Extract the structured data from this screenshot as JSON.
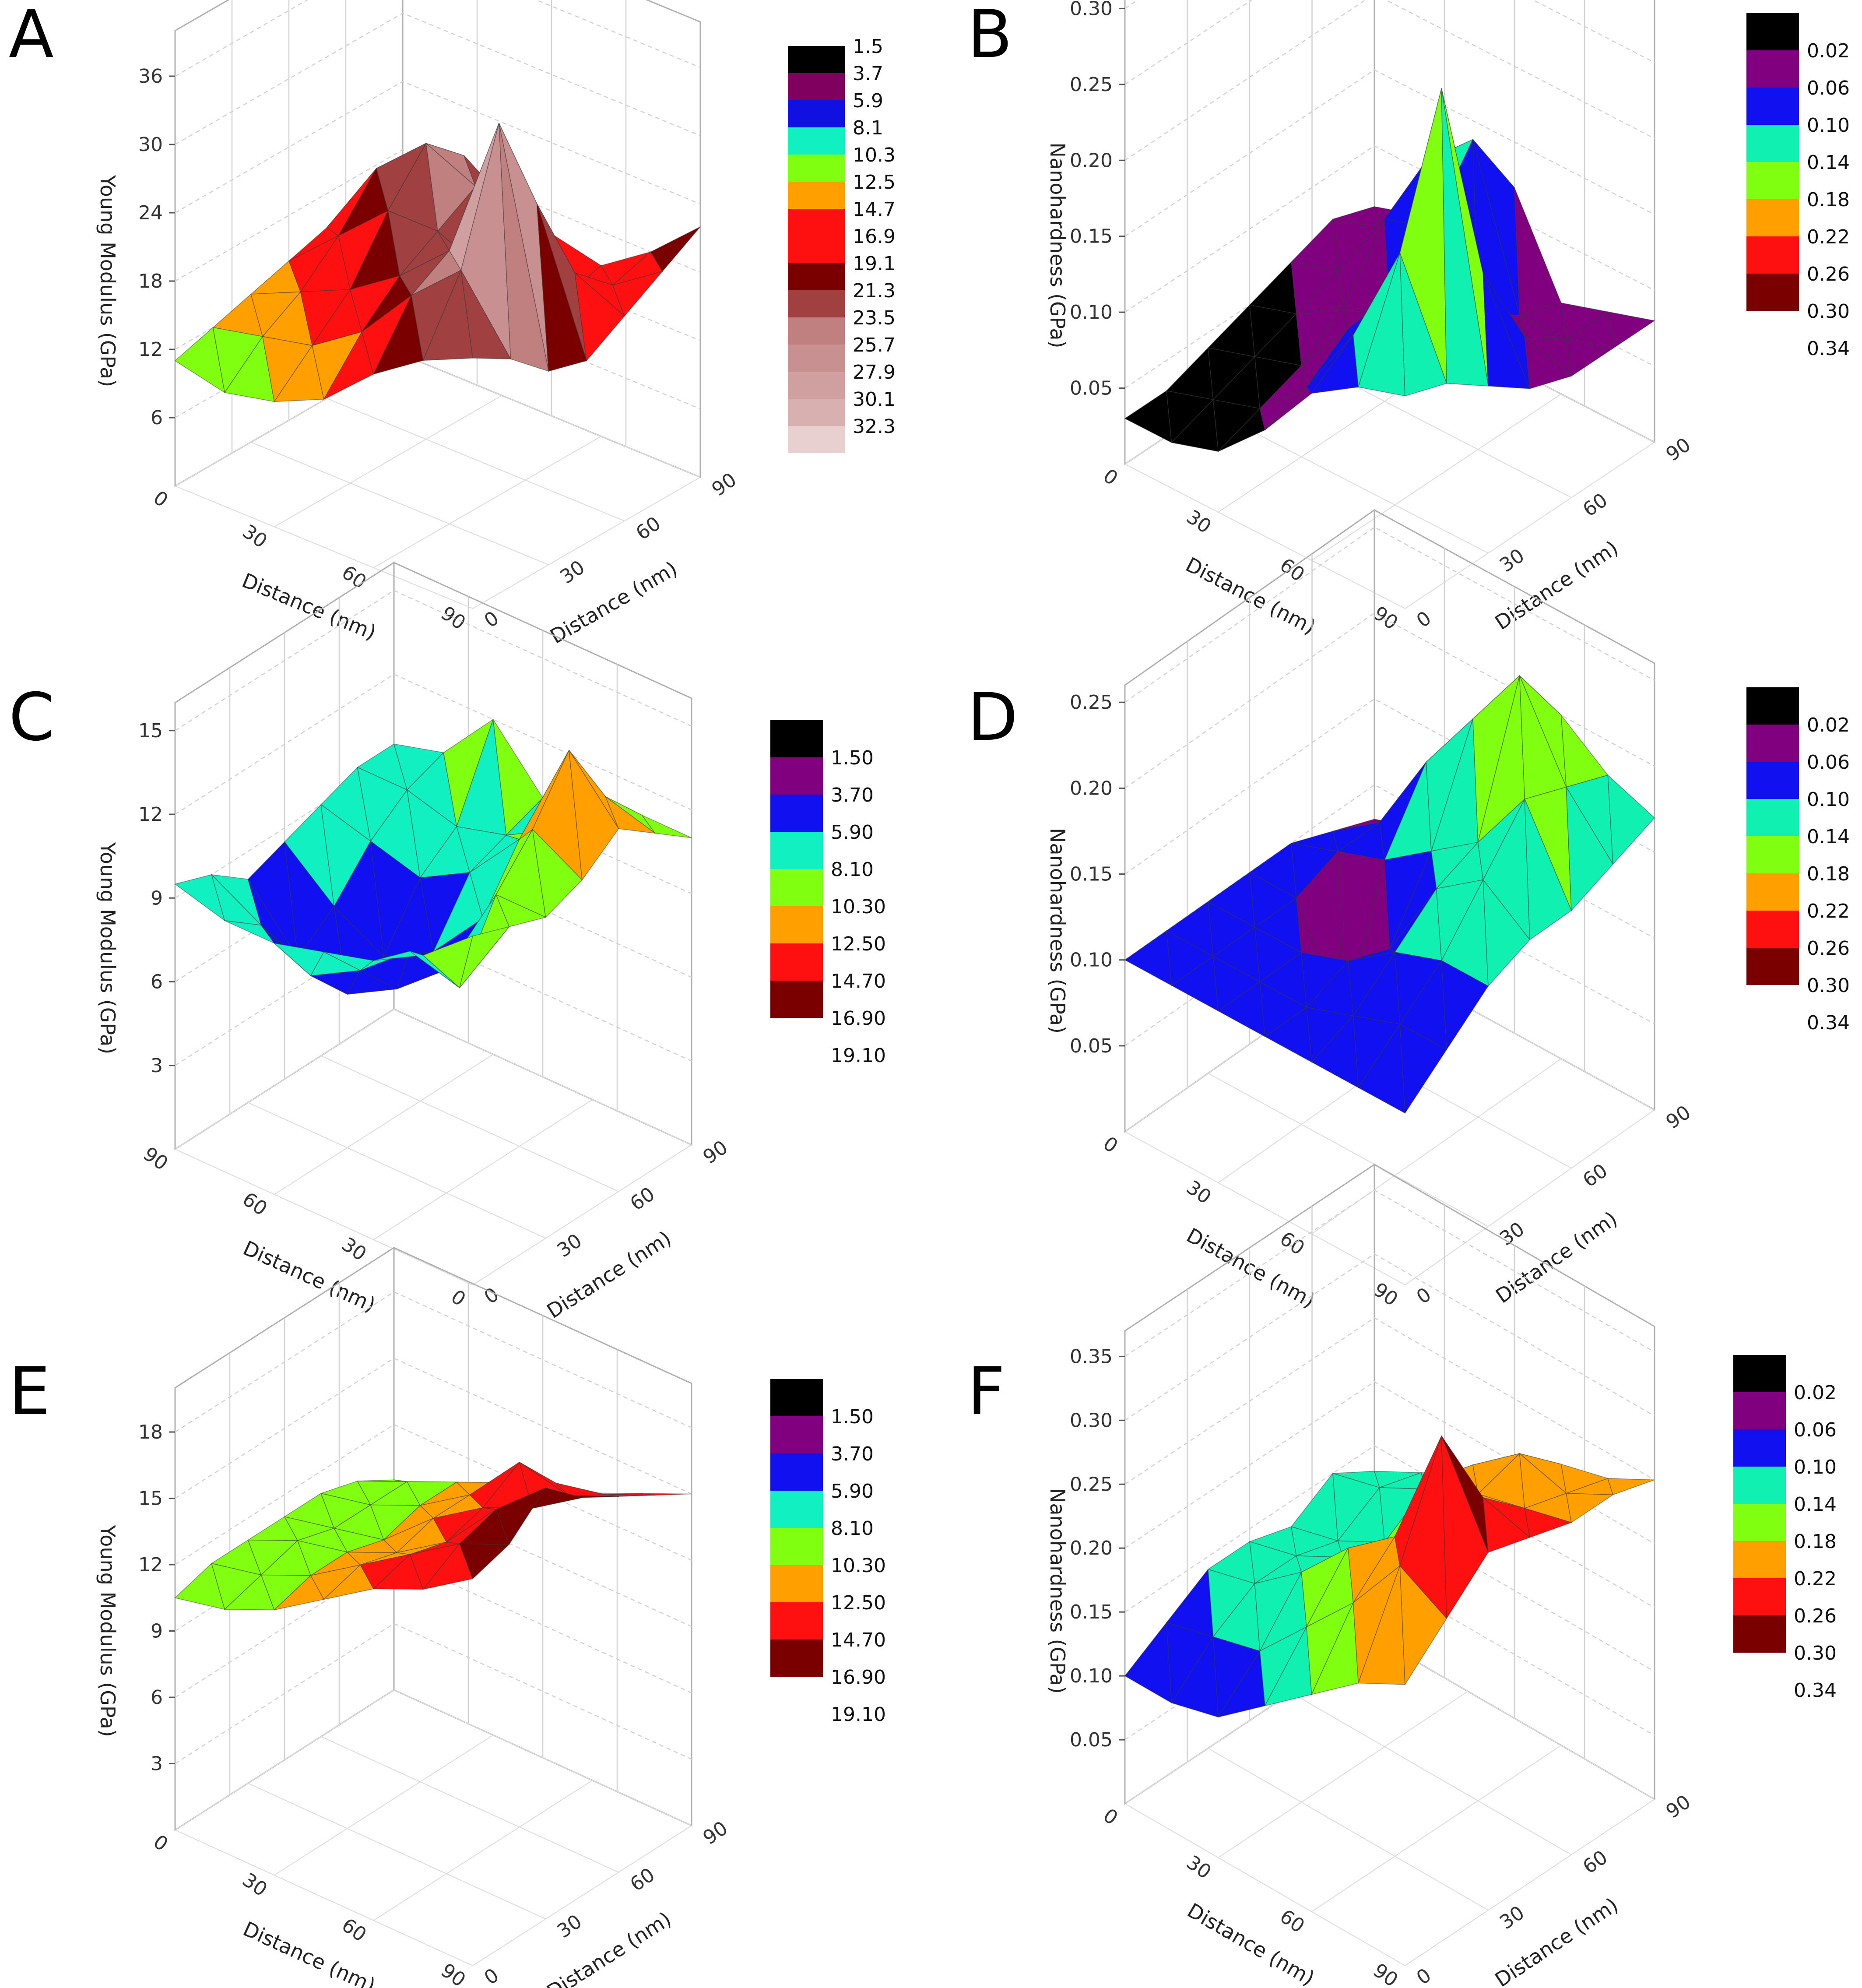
{
  "panels": [
    {
      "label": "A",
      "chart_data": {
        "type": "surface3d",
        "zlabel": "Young Modulus (GPa)",
        "xlabel": "Distance (nm)",
        "ylabel": "Distance (nm)",
        "x_ticks": [
          "0",
          "30",
          "60",
          "90"
        ],
        "y_ticks": [
          "0",
          "30",
          "60",
          "90"
        ],
        "z_ticks": [
          "6",
          "12",
          "18",
          "24",
          "30",
          "36"
        ],
        "zlim": [
          0,
          40
        ],
        "legend_labels": [
          "1.5",
          "3.7",
          "5.9",
          "8.1",
          "10.3",
          "12.5",
          "14.7",
          "16.9",
          "19.1",
          "21.3",
          "23.5",
          "25.7",
          "27.9",
          "30.1",
          "32.3"
        ],
        "legend_colors": [
          "#000000",
          "#800060",
          "#1010e0",
          "#10f0c0",
          "#80ff10",
          "#ffa000",
          "#ff1010",
          "#ff1010",
          "#7a0000",
          "#a04040",
          "#c08080",
          "#c89090",
          "#d0a0a0",
          "#d8b0b0",
          "#e8d0d0"
        ],
        "x": [
          0,
          15,
          30,
          45,
          60,
          75,
          90
        ],
        "y": [
          0,
          15,
          30,
          45,
          60,
          75,
          90
        ],
        "z": [
          [
            22,
            20,
            17,
            16,
            18,
            20,
            22
          ],
          [
            20,
            26,
            37,
            28,
            20,
            17,
            18
          ],
          [
            17,
            22,
            24,
            20,
            17,
            14,
            15
          ],
          [
            13,
            17,
            20,
            22,
            24,
            20,
            16
          ],
          [
            11,
            14,
            17,
            22,
            26,
            23,
            17
          ],
          [
            10,
            13,
            15,
            18,
            22,
            21,
            15
          ],
          [
            11,
            12,
            13,
            14,
            15,
            14,
            13
          ]
        ]
      }
    },
    {
      "label": "B",
      "chart_data": {
        "type": "surface3d",
        "zlabel": "Nanohardness (GPa)",
        "xlabel": "Distance (nm)",
        "ylabel": "Distance (nm)",
        "x_ticks": [
          "0",
          "30",
          "60",
          "90"
        ],
        "y_ticks": [
          "0",
          "30",
          "60",
          "90"
        ],
        "z_ticks": [
          "0.05",
          "0.10",
          "0.15",
          "0.20",
          "0.25",
          "0.30"
        ],
        "zlim": [
          0,
          0.32
        ],
        "legend_labels": [
          "0.02",
          "0.06",
          "0.10",
          "0.14",
          "0.18",
          "0.22",
          "0.26",
          "0.30",
          "0.34"
        ],
        "legend_colors": [
          "#000000",
          "#800080",
          "#1010f0",
          "#10f0b0",
          "#80ff10",
          "#ffa000",
          "#ff1010",
          "#7a0000"
        ],
        "x": [
          0,
          15,
          30,
          45,
          60,
          75,
          90
        ],
        "y": [
          0,
          15,
          30,
          45,
          60,
          75,
          90
        ],
        "z": [
          [
            0.14,
            0.13,
            0.11,
            0.09,
            0.08,
            0.08,
            0.08
          ],
          [
            0.13,
            0.2,
            0.29,
            0.15,
            0.09,
            0.07,
            0.07
          ],
          [
            0.11,
            0.13,
            0.14,
            0.1,
            0.09,
            0.07,
            0.06
          ],
          [
            0.07,
            0.08,
            0.1,
            0.09,
            0.13,
            0.17,
            0.12
          ],
          [
            0.04,
            0.05,
            0.06,
            0.08,
            0.12,
            0.14,
            0.1
          ],
          [
            0.03,
            0.04,
            0.05,
            0.06,
            0.07,
            0.08,
            0.07
          ],
          [
            0.03,
            0.03,
            0.04,
            0.05,
            0.06,
            0.07,
            0.06
          ]
        ]
      }
    },
    {
      "label": "C",
      "chart_data": {
        "type": "surface3d",
        "zlabel": "Young Modulus (GPa)",
        "xlabel": "Distance (nm)",
        "ylabel": "Distance (nm)",
        "x_ticks": [
          "90",
          "60",
          "30",
          "0"
        ],
        "y_ticks": [
          "0",
          "30",
          "60",
          "90"
        ],
        "z_ticks": [
          "3",
          "6",
          "9",
          "12",
          "15"
        ],
        "zlim": [
          0,
          16
        ],
        "legend_labels": [
          "1.50",
          "3.70",
          "5.90",
          "8.10",
          "10.30",
          "12.50",
          "14.70",
          "16.90",
          "19.10"
        ],
        "legend_colors": [
          "#000000",
          "#800080",
          "#1010f0",
          "#10f0c0",
          "#80ff10",
          "#ffa000",
          "#ff1010",
          "#7a0000"
        ],
        "x": [
          90,
          75,
          60,
          45,
          30,
          15,
          0
        ],
        "y": [
          0,
          15,
          30,
          45,
          60,
          75,
          90
        ],
        "z": [
          [
            12.5,
            12.0,
            11.5,
            12.0,
            13.0,
            12.0,
            11.0
          ],
          [
            11.0,
            9.0,
            11.5,
            13.0,
            15.0,
            12.5,
            11.0
          ],
          [
            10.0,
            9.5,
            8.0,
            9.0,
            11.0,
            10.5,
            11.0
          ],
          [
            9.5,
            8.0,
            6.5,
            7.0,
            9.0,
            9.5,
            10.0
          ],
          [
            9.0,
            7.0,
            5.5,
            6.0,
            8.0,
            9.0,
            12.0
          ],
          [
            9.0,
            8.0,
            6.0,
            7.0,
            8.5,
            9.5,
            10.0
          ],
          [
            9.5,
            9.0,
            8.0,
            8.5,
            9.0,
            9.5,
            9.5
          ]
        ]
      }
    },
    {
      "label": "D",
      "chart_data": {
        "type": "surface3d",
        "zlabel": "Nanohardness (GPa)",
        "xlabel": "Distance (nm)",
        "ylabel": "Distance (nm)",
        "x_ticks": [
          "0",
          "30",
          "60",
          "90"
        ],
        "y_ticks": [
          "0",
          "30",
          "60",
          "90"
        ],
        "z_ticks": [
          "0.05",
          "0.10",
          "0.15",
          "0.20",
          "0.25"
        ],
        "zlim": [
          0,
          0.26
        ],
        "legend_labels": [
          "0.02",
          "0.06",
          "0.10",
          "0.14",
          "0.18",
          "0.22",
          "0.26",
          "0.30",
          "0.34"
        ],
        "legend_colors": [
          "#000000",
          "#800080",
          "#1010f0",
          "#10f0b0",
          "#80ff10",
          "#ffa000",
          "#ff1010",
          "#7a0000"
        ],
        "x": [
          0,
          15,
          30,
          45,
          60,
          75,
          90
        ],
        "y": [
          0,
          15,
          30,
          45,
          60,
          75,
          90
        ],
        "z": [
          [
            0.1,
            0.12,
            0.14,
            0.15,
            0.15,
            0.16,
            0.17
          ],
          [
            0.1,
            0.12,
            0.14,
            0.17,
            0.2,
            0.19,
            0.18
          ],
          [
            0.1,
            0.11,
            0.13,
            0.15,
            0.16,
            0.24,
            0.2
          ],
          [
            0.1,
            0.1,
            0.11,
            0.1,
            0.14,
            0.2,
            0.18
          ],
          [
            0.1,
            0.1,
            0.1,
            0.04,
            0.12,
            0.16,
            0.14
          ],
          [
            0.1,
            0.1,
            0.1,
            0.1,
            0.11,
            0.11,
            0.09
          ],
          [
            0.1,
            0.1,
            0.1,
            0.1,
            0.1,
            0.09,
            0.08
          ]
        ]
      }
    },
    {
      "label": "E",
      "chart_data": {
        "type": "surface3d",
        "zlabel": "Young Modulus (GPa)",
        "xlabel": "Distance (nm)",
        "ylabel": "Distance (nm)",
        "x_ticks": [
          "0",
          "30",
          "60",
          "90"
        ],
        "y_ticks": [
          "0",
          "30",
          "60",
          "90"
        ],
        "z_ticks": [
          "3",
          "6",
          "9",
          "12",
          "15",
          "18"
        ],
        "zlim": [
          0,
          20
        ],
        "legend_labels": [
          "1.50",
          "3.70",
          "5.90",
          "8.10",
          "10.30",
          "12.50",
          "14.70",
          "16.90",
          "19.10"
        ],
        "legend_colors": [
          "#000000",
          "#800080",
          "#1010f0",
          "#10f0c0",
          "#80ff10",
          "#ffa000",
          "#ff1010",
          "#7a0000"
        ],
        "x": [
          0,
          15,
          30,
          45,
          60,
          75,
          90
        ],
        "y": [
          0,
          15,
          30,
          45,
          60,
          75,
          90
        ],
        "z": [
          [
            17.5,
            18.0,
            19.5,
            18.0,
            17.0,
            16.0,
            15.0
          ],
          [
            16.0,
            17.0,
            17.5,
            16.5,
            16.0,
            15.0,
            14.0
          ],
          [
            15.0,
            15.5,
            15.0,
            15.5,
            16.5,
            14.5,
            13.0
          ],
          [
            13.5,
            14.0,
            13.5,
            14.0,
            14.0,
            13.5,
            12.5
          ],
          [
            12.0,
            12.5,
            12.5,
            12.0,
            12.5,
            12.5,
            11.0
          ],
          [
            11.0,
            11.5,
            12.0,
            11.5,
            11.5,
            11.5,
            10.0
          ],
          [
            10.5,
            11.0,
            11.0,
            11.0,
            11.0,
            10.5,
            9.5
          ]
        ]
      }
    },
    {
      "label": "F",
      "chart_data": {
        "type": "surface3d",
        "zlabel": "Nanohardness (GPa)",
        "xlabel": "Distance (nm)",
        "ylabel": "Distance (nm)",
        "x_ticks": [
          "0",
          "30",
          "60",
          "90"
        ],
        "y_ticks": [
          "0",
          "30",
          "60",
          "90"
        ],
        "z_ticks": [
          "0.05",
          "0.10",
          "0.15",
          "0.20",
          "0.25",
          "0.30",
          "0.35"
        ],
        "zlim": [
          0,
          0.37
        ],
        "legend_labels": [
          "0.02",
          "0.06",
          "0.10",
          "0.14",
          "0.18",
          "0.22",
          "0.26",
          "0.30",
          "0.34"
        ],
        "legend_colors": [
          "#000000",
          "#800080",
          "#1010f0",
          "#10f0b0",
          "#80ff10",
          "#ffa000",
          "#ff1010",
          "#7a0000"
        ],
        "x": [
          0,
          15,
          30,
          45,
          60,
          75,
          90
        ],
        "y": [
          0,
          15,
          30,
          45,
          60,
          75,
          90
        ],
        "z": [
          [
            0.22,
            0.25,
            0.28,
            0.27,
            0.26,
            0.26,
            0.25
          ],
          [
            0.2,
            0.27,
            0.35,
            0.28,
            0.25,
            0.24,
            0.23
          ],
          [
            0.17,
            0.22,
            0.25,
            0.26,
            0.24,
            0.25,
            0.22
          ],
          [
            0.14,
            0.18,
            0.22,
            0.2,
            0.23,
            0.22,
            0.2
          ],
          [
            0.11,
            0.14,
            0.18,
            0.17,
            0.16,
            0.18,
            0.17
          ],
          [
            0.1,
            0.13,
            0.15,
            0.15,
            0.14,
            0.16,
            0.15
          ],
          [
            0.1,
            0.12,
            0.14,
            0.14,
            0.13,
            0.15,
            0.13
          ]
        ]
      }
    }
  ]
}
